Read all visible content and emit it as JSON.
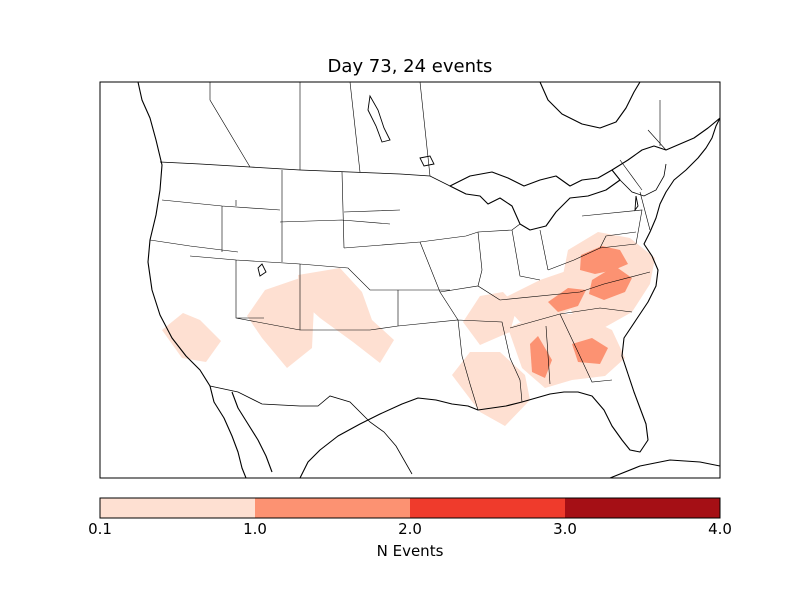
{
  "title": "Day 73, 24 events",
  "colorbar": {
    "label": "N Events",
    "ticks": [
      "0.1",
      "1.0",
      "2.0",
      "3.0",
      "4.0"
    ],
    "bins": [
      {
        "range": "0.1-1.0",
        "color": "#fee0d2"
      },
      {
        "range": "1.0-2.0",
        "color": "#fc9272"
      },
      {
        "range": "2.0-3.0",
        "color": "#ef3b2c"
      },
      {
        "range": "3.0-4.0",
        "color": "#a50f15"
      }
    ]
  },
  "map": {
    "region": "United States, southern Canada, northern Mexico",
    "projection": "lambert-conformal",
    "shaded_regions": [
      {
        "name": "central-california",
        "bin": "0.1-1.0"
      },
      {
        "name": "southern-utah-nevada",
        "bin": "0.1-1.0"
      },
      {
        "name": "colorado-new-mexico",
        "bin": "0.1-1.0"
      },
      {
        "name": "missouri-arkansas",
        "bin": "0.1-1.0"
      },
      {
        "name": "tennessee-kentucky",
        "bin": "0.1-1.0"
      },
      {
        "name": "virginia-carolinas",
        "bin": "0.1-1.0"
      },
      {
        "name": "louisiana-mississippi",
        "bin": "0.1-1.0"
      },
      {
        "name": "alabama-georgia",
        "bin": "0.1-1.0"
      },
      {
        "name": "virginia-core",
        "bin": "1.0-2.0"
      },
      {
        "name": "north-carolina-core",
        "bin": "1.0-2.0"
      },
      {
        "name": "east-tennessee",
        "bin": "1.0-2.0"
      },
      {
        "name": "central-alabama",
        "bin": "1.0-2.0"
      },
      {
        "name": "central-georgia",
        "bin": "1.0-2.0"
      }
    ]
  }
}
